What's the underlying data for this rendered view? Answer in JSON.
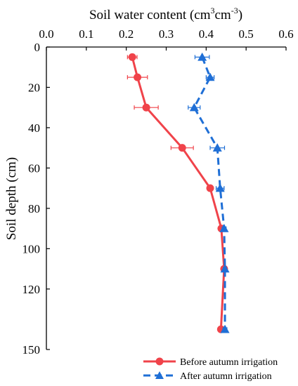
{
  "chart_data": {
    "type": "line",
    "title": "",
    "xlabel_main": "Soil water content (cm",
    "xlabel_sup1": "3",
    "xlabel_mid": "cm",
    "xlabel_sup2": "-3",
    "xlabel_end": ")",
    "ylabel": "Soil depth (cm)",
    "xlim": [
      0,
      0.6
    ],
    "ylim": [
      0,
      150
    ],
    "y_inverted": true,
    "x_axis_position": "top",
    "x_ticks": [
      "0.0",
      "0.1",
      "0.2",
      "0.3",
      "0.4",
      "0.5",
      "0.6"
    ],
    "y_ticks": [
      "0",
      "20",
      "40",
      "60",
      "80",
      "100",
      "120",
      "150"
    ],
    "legend_position": "bottom-right",
    "series": [
      {
        "name": "Before autumn irrigation",
        "color": "#f0434a",
        "marker": "circle",
        "line_style": "solid",
        "points": [
          {
            "x": 0.215,
            "y": 5,
            "err": 0.012
          },
          {
            "x": 0.228,
            "y": 15,
            "err": 0.025
          },
          {
            "x": 0.25,
            "y": 30,
            "err": 0.03
          },
          {
            "x": 0.34,
            "y": 50,
            "err": 0.028
          },
          {
            "x": 0.41,
            "y": 70,
            "err": 0.005
          },
          {
            "x": 0.438,
            "y": 90,
            "err": 0.004
          },
          {
            "x": 0.445,
            "y": 110,
            "err": 0.004
          },
          {
            "x": 0.437,
            "y": 140,
            "err": 0.004
          }
        ]
      },
      {
        "name": "After autumn irrigation",
        "color": "#1f6fd6",
        "marker": "triangle",
        "line_style": "dashed",
        "points": [
          {
            "x": 0.39,
            "y": 5,
            "err": 0.018
          },
          {
            "x": 0.41,
            "y": 15,
            "err": 0.01
          },
          {
            "x": 0.37,
            "y": 30,
            "err": 0.015
          },
          {
            "x": 0.428,
            "y": 50,
            "err": 0.018
          },
          {
            "x": 0.435,
            "y": 70,
            "err": 0.01
          },
          {
            "x": 0.445,
            "y": 90,
            "err": 0.005
          },
          {
            "x": 0.447,
            "y": 110,
            "err": 0.004
          },
          {
            "x": 0.447,
            "y": 140,
            "err": 0.005
          }
        ]
      }
    ]
  }
}
